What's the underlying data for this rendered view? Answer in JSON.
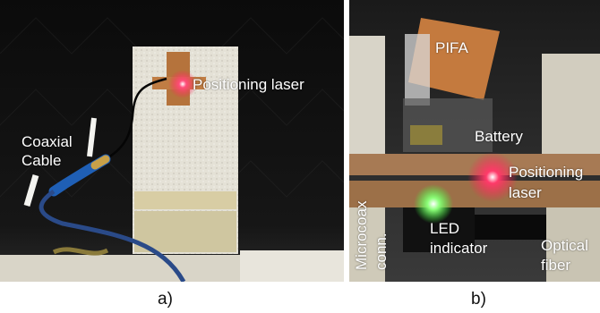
{
  "panel_a": {
    "labels": {
      "coaxial_line1": "Coaxial",
      "coaxial_line2": "Cable",
      "laser": "Positioning laser"
    },
    "caption": "a)"
  },
  "panel_b": {
    "labels": {
      "pifa": "PIFA",
      "battery": "Battery",
      "laser_line1": "Positioning",
      "laser_line2": "laser",
      "microcoax_line1": "Microcoax",
      "microcoax_line2": "conn.",
      "led_line1": "LED",
      "led_line2": "indicator",
      "fiber_line1": "Optical",
      "fiber_line2": "fiber"
    },
    "caption": "b)"
  },
  "colors": {
    "laser_red": "#ff3a6a",
    "led_green": "#8dff7a",
    "copper": "#b5733c",
    "foam_white": "#e9e6dc",
    "background_dark": "#121212"
  }
}
